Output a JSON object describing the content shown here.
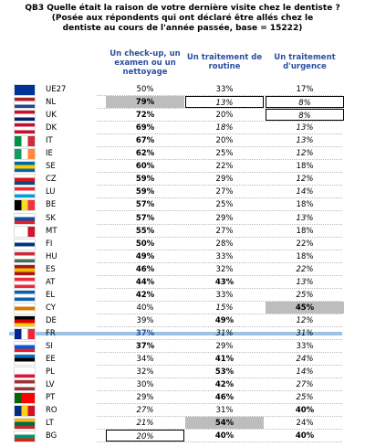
{
  "header": {
    "title": "QB3 Quelle était la raison de votre dernière visite chez le dentiste ?",
    "subtitle": "(Posée aux répondents qui ont déclaré être allés chez le dentiste au cours de l'année passée, base = 15222)"
  },
  "table": {
    "columns": [
      "Un check-up, un examen ou un nettoyage",
      "Un traitement de routine",
      "Un traitement d'urgence"
    ],
    "rows": [
      [
        "UE27",
        "50%",
        "33%",
        "17%"
      ],
      [
        "NL",
        "79%",
        "13%",
        "8%"
      ],
      [
        "UK",
        "72%",
        "20%",
        "8%"
      ],
      [
        "DK",
        "69%",
        "18%",
        "13%"
      ],
      [
        "IT",
        "67%",
        "20%",
        "13%"
      ],
      [
        "IE",
        "62%",
        "25%",
        "12%"
      ],
      [
        "SE",
        "60%",
        "22%",
        "18%"
      ],
      [
        "CZ",
        "59%",
        "29%",
        "12%"
      ],
      [
        "LU",
        "59%",
        "27%",
        "14%"
      ],
      [
        "BE",
        "57%",
        "25%",
        "18%"
      ],
      [
        "SK",
        "57%",
        "29%",
        "13%"
      ],
      [
        "MT",
        "55%",
        "27%",
        "18%"
      ],
      [
        "FI",
        "50%",
        "28%",
        "22%"
      ],
      [
        "HU",
        "49%",
        "33%",
        "18%"
      ],
      [
        "ES",
        "46%",
        "32%",
        "22%"
      ],
      [
        "AT",
        "44%",
        "43%",
        "13%"
      ],
      [
        "EL",
        "42%",
        "33%",
        "25%"
      ],
      [
        "CY",
        "40%",
        "15%",
        "45%"
      ],
      [
        "DE",
        "39%",
        "49%",
        "12%"
      ],
      [
        "FR",
        "37%",
        "31%",
        "31%"
      ],
      [
        "SI",
        "37%",
        "29%",
        "33%"
      ],
      [
        "EE",
        "34%",
        "41%",
        "24%"
      ],
      [
        "PL",
        "32%",
        "53%",
        "14%"
      ],
      [
        "LV",
        "30%",
        "42%",
        "27%"
      ],
      [
        "PT",
        "29%",
        "46%",
        "25%"
      ],
      [
        "RO",
        "27%",
        "31%",
        "40%"
      ],
      [
        "LT",
        "21%",
        "54%",
        "24%"
      ],
      [
        "BG",
        "20%",
        "40%",
        "40%"
      ]
    ]
  }
}
